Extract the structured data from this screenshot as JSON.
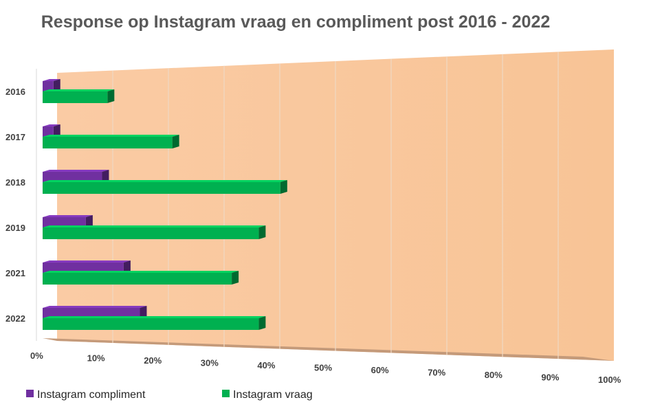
{
  "chart_data": {
    "type": "bar",
    "orientation": "horizontal",
    "title": "Response op Instagram vraag en compliment post 2016 - 2022",
    "categories": [
      "2016",
      "2017",
      "2018",
      "2019",
      "2021",
      "2022"
    ],
    "series": [
      {
        "name": "Instagram compliment",
        "color": "#7030A0",
        "values": [
          2,
          2,
          11,
          8,
          15,
          18
        ]
      },
      {
        "name": "Instagram vraag",
        "color": "#00B050",
        "values": [
          12,
          24,
          44,
          40,
          35,
          40
        ]
      }
    ],
    "xlim": [
      0,
      100
    ],
    "x_ticks": [
      "0%",
      "10%",
      "20%",
      "30%",
      "40%",
      "50%",
      "60%",
      "70%",
      "80%",
      "90%",
      "100%"
    ],
    "xlabel": "",
    "ylabel": "",
    "grid": true,
    "plot_background": "#FAC9A0",
    "legend_position": "bottom-left"
  }
}
